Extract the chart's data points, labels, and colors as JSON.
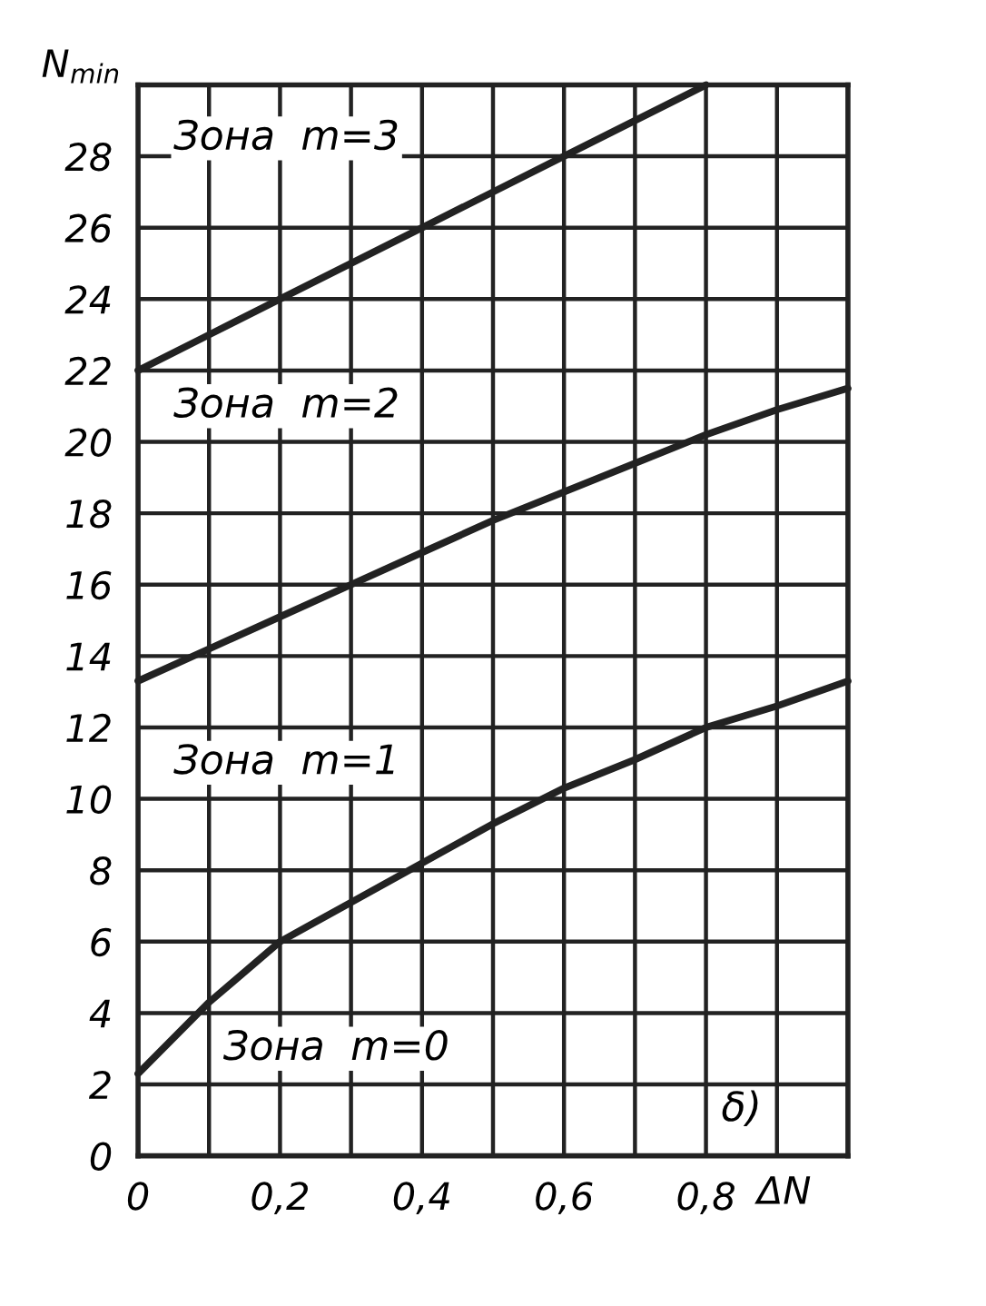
{
  "chart_data": {
    "type": "line",
    "xlabel": "ΔN",
    "ylabel": "N$_{min}$",
    "x": [
      0,
      0.1,
      0.2,
      0.3,
      0.4,
      0.5,
      0.6,
      0.7,
      0.8,
      0.9,
      1.0
    ],
    "series": [
      {
        "color": "#222222",
        "values": [
          22,
          23,
          24,
          25,
          26,
          27,
          28,
          29,
          30,
          null,
          null
        ]
      },
      {
        "color": "#222222",
        "values": [
          13.3,
          14.2,
          15.1,
          16.0,
          16.9,
          17.8,
          18.6,
          19.4,
          20.2,
          20.9,
          21.5
        ]
      },
      {
        "color": "#222222",
        "values": [
          2.3,
          4.3,
          6.0,
          7.1,
          8.2,
          9.3,
          10.3,
          11.1,
          12.0,
          12.6,
          13.3
        ]
      }
    ],
    "annotations": [
      "Зона  m=3",
      "Зона  m=2",
      "Зона  m=1",
      "Зона  m=0",
      "δ)"
    ],
    "xlim": [
      0,
      1.0
    ],
    "ylim": [
      0,
      30
    ],
    "xticks": [
      0,
      {
        "value": 0.1,
        "label": null
      },
      {
        "value": 0.2,
        "label": "0,2"
      },
      {
        "value": 0.3,
        "label": null
      },
      {
        "value": 0.4,
        "label": "0,4"
      },
      {
        "value": 0.5,
        "label": null
      },
      {
        "value": 0.6,
        "label": "0,6"
      },
      {
        "value": 0.7,
        "label": null
      },
      {
        "value": 0.8,
        "label": "0,8"
      },
      {
        "value": 0.9,
        "label": null
      },
      {
        "value": 1.0,
        "label": null
      }
    ],
    "yticks": [
      0,
      2,
      4,
      6,
      8,
      10,
      12,
      14,
      16,
      18,
      20,
      22,
      24,
      26,
      28,
      {
        "value": 30,
        "label": null
      }
    ],
    "grid": true,
    "legend": false,
    "marker": "none",
    "line_style": "solid"
  }
}
